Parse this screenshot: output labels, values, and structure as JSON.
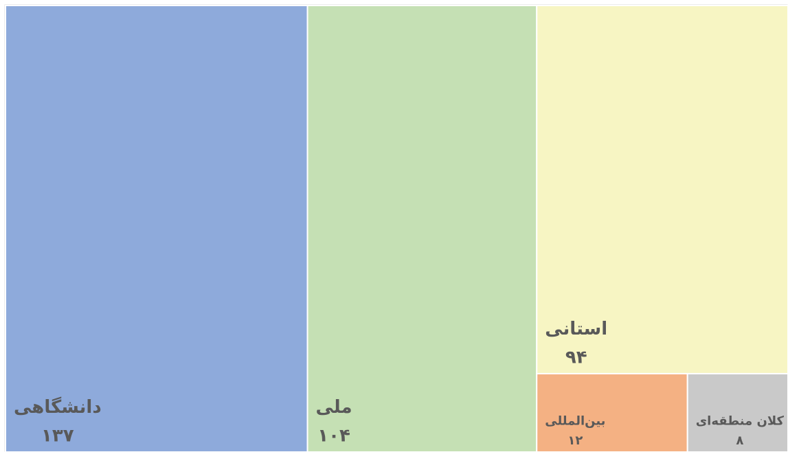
{
  "chart_data": {
    "type": "treemap",
    "categories": [
      "دانشگاهی",
      "ملی",
      "استانی",
      "بین‌المللی",
      "کلان منطقه‌ای"
    ],
    "values": [
      137,
      104,
      94,
      12,
      8
    ],
    "value_labels": [
      "۱۳۷",
      "۱۰۴",
      "۹۴",
      "۱۲",
      "۸"
    ],
    "colors": [
      "#8eaadb",
      "#c5e0b4",
      "#f7f5c3",
      "#f4b183",
      "#c9c9c9"
    ]
  }
}
